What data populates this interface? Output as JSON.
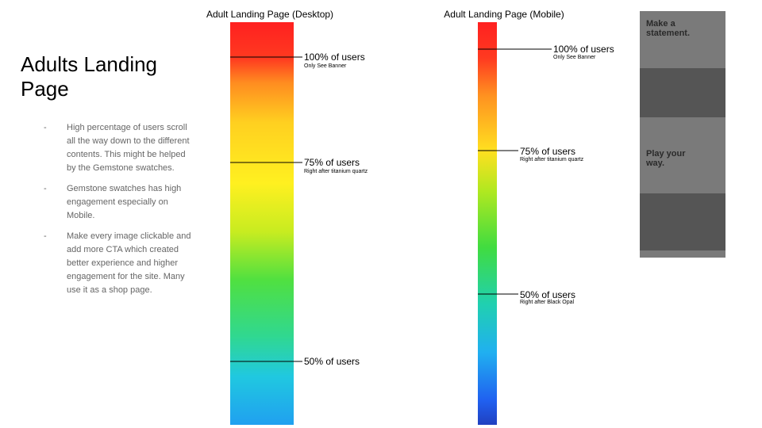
{
  "slide": {
    "title": "Adults Landing Page",
    "bullets": [
      "High percentage of users scroll all the way down to the different contents. This might be helped by the Gemstone swatches.",
      "Gemstone swatches has high engagement especially on Mobile.",
      "Make every image clickable and add more CTA which created better experience and higher engagement for the site. Many use it as a shop page."
    ],
    "bullet_marker": "-",
    "desktop": {
      "title": "Adult Landing Page (Desktop)",
      "annotations": [
        {
          "label": "100% of users",
          "note": "Only See Banner"
        },
        {
          "label": "75% of users",
          "note": "Right after titanium quartz"
        },
        {
          "label": "50% of users"
        }
      ]
    },
    "mobile": {
      "title": "Adult Landing Page (Mobile)",
      "annotations": [
        {
          "label": "100% of users",
          "note": "Only See Banner"
        },
        {
          "label": "75% of users",
          "note": "Right after titanium quartz"
        },
        {
          "label": "50% of users",
          "note": "Right after Black Opal"
        }
      ]
    },
    "preview": {
      "headline_1": "Make a statement.",
      "headline_2": "Play your way."
    }
  }
}
